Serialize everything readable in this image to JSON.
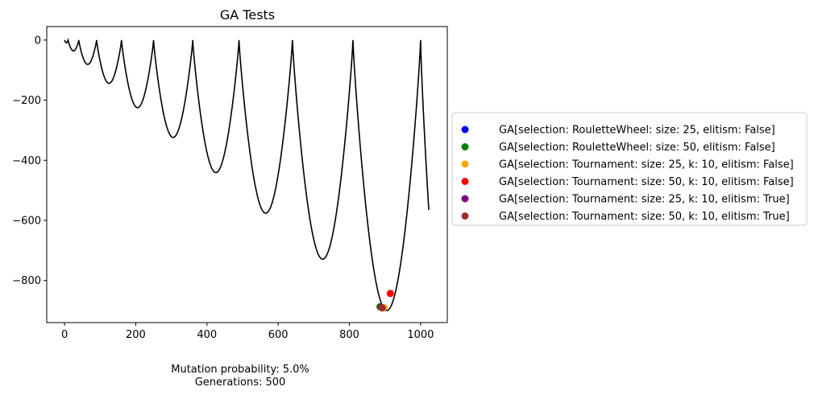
{
  "chart_data": {
    "type": "scatter",
    "title": "GA Tests",
    "xlabel": "",
    "ylabel": "",
    "xlim": [
      -50,
      1075
    ],
    "ylim": [
      -940,
      45
    ],
    "x_ticks": [
      0,
      200,
      400,
      600,
      800,
      1000
    ],
    "y_ticks": [
      0,
      -200,
      -400,
      -600,
      -800
    ],
    "x_tick_labels": [
      "0",
      "200",
      "400",
      "600",
      "800",
      "1000"
    ],
    "y_tick_labels": [
      "0",
      "−200",
      "−400",
      "−600",
      "−800"
    ],
    "grid": false,
    "legend_placement": "outside-right",
    "line": {
      "color": "#000000",
      "x_range": [
        0,
        1023
      ],
      "peaks": [
        0,
        10,
        40,
        90,
        160,
        250,
        360,
        490,
        640,
        810,
        1000
      ],
      "end_y": -565
    },
    "series": [
      {
        "name": "GA[selection: RouletteWheel: size: 25, elitism: False]",
        "color": "#0000ff",
        "points": [
          {
            "x": 893,
            "y": -890
          }
        ]
      },
      {
        "name": "GA[selection: RouletteWheel: size: 50, elitism: False]",
        "color": "#008000",
        "points": [
          {
            "x": 886,
            "y": -887
          }
        ]
      },
      {
        "name": "GA[selection: Tournament: size: 25, k: 10, elitism: False]",
        "color": "#ffa500",
        "points": [
          {
            "x": 897,
            "y": -890
          }
        ]
      },
      {
        "name": "GA[selection: Tournament: size: 50, k: 10, elitism: False]",
        "color": "#ff0000",
        "points": [
          {
            "x": 915,
            "y": -843
          }
        ]
      },
      {
        "name": "GA[selection: Tournament: size: 25, k: 10, elitism: True]",
        "color": "#800080",
        "points": [
          {
            "x": 891,
            "y": -890
          }
        ]
      },
      {
        "name": "GA[selection: Tournament: size: 50, k: 10, elitism: True]",
        "color": "#a52a2a",
        "points": [
          {
            "x": 892,
            "y": -891
          }
        ]
      }
    ],
    "annotations": [
      "Mutation probability: 5.0%",
      "Generations: 500"
    ]
  }
}
